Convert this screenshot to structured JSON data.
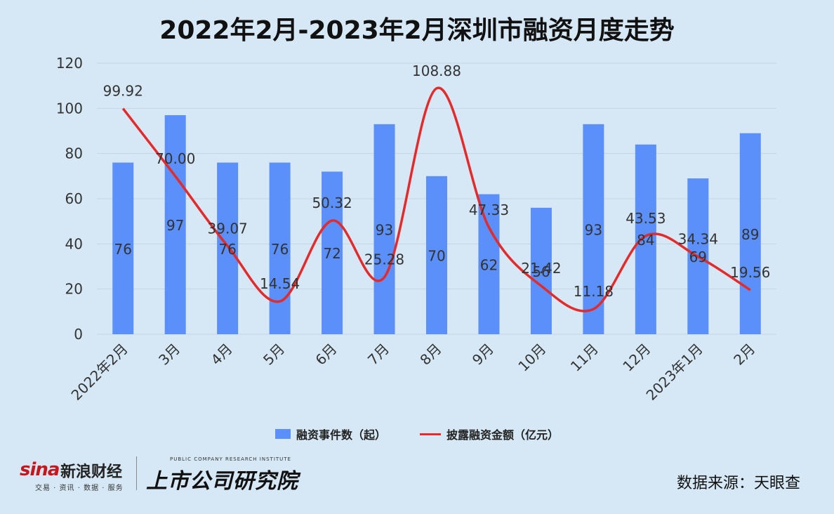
{
  "title": "2022年2月-2023年2月深圳市融资月度走势",
  "legend": {
    "bar_label": "融资事件数（起）",
    "line_label": "披露融资金额（亿元）"
  },
  "footer": {
    "sina_logo": "sina",
    "sina_name": "新浪财经",
    "sina_sub": "交易 · 资讯 · 数据 · 服务",
    "research_en": "PUBLIC COMPANY RESEARCH INSTITUTE",
    "research_cn": "上市公司研究院",
    "source": "数据来源：天眼查"
  },
  "colors": {
    "bar": "#5b8ff9",
    "line": "#e32b2b",
    "background": "#d6e8f5"
  },
  "chart_data": {
    "type": "bar+line",
    "categories": [
      "2022年2月",
      "3月",
      "4月",
      "5月",
      "6月",
      "7月",
      "8月",
      "9月",
      "10月",
      "11月",
      "12月",
      "2023年1月",
      "2月"
    ],
    "series": [
      {
        "name": "融资事件数（起）",
        "type": "bar",
        "values": [
          76,
          97,
          76,
          76,
          72,
          93,
          70,
          62,
          56,
          93,
          84,
          69,
          89
        ]
      },
      {
        "name": "披露融资金额（亿元）",
        "type": "line",
        "smooth": true,
        "values": [
          99.92,
          70.0,
          39.07,
          14.54,
          50.32,
          25.28,
          108.88,
          47.33,
          21.42,
          11.18,
          43.53,
          34.34,
          19.56
        ],
        "labels": [
          "99.92",
          "70.00",
          "39.07",
          "14.54",
          "50.32",
          "25.28",
          "108.88",
          "47.33",
          "21.42",
          "11.18",
          "43.53",
          "34.34",
          "19.56"
        ]
      }
    ],
    "yticks": [
      0,
      20,
      40,
      60,
      80,
      100,
      120
    ],
    "ylim": [
      0,
      120
    ],
    "grid": true,
    "legend_position": "bottom"
  }
}
